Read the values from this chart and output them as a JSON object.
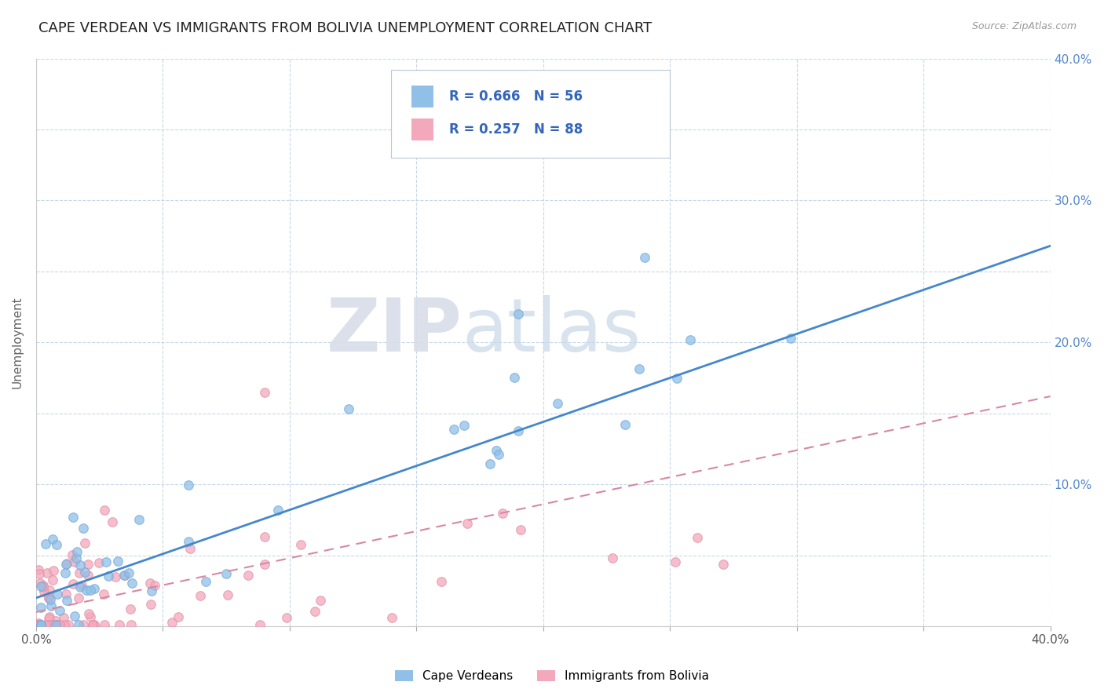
{
  "title": "CAPE VERDEAN VS IMMIGRANTS FROM BOLIVIA UNEMPLOYMENT CORRELATION CHART",
  "source": "Source: ZipAtlas.com",
  "ylabel": "Unemployment",
  "xlim": [
    0.0,
    0.4
  ],
  "ylim": [
    0.0,
    0.4
  ],
  "series1_name": "Cape Verdeans",
  "series1_color": "#90c0e8",
  "series1_edge_color": "#70a8d8",
  "series1_R": 0.666,
  "series1_N": 56,
  "series1_line_color": "#4488cc",
  "series2_name": "Immigrants from Bolivia",
  "series2_color": "#f4a8bc",
  "series2_edge_color": "#e090a4",
  "series2_R": 0.257,
  "series2_N": 88,
  "series2_line_color": "#d888a0",
  "watermark_zip": "ZIP",
  "watermark_atlas": "atlas",
  "background_color": "#ffffff",
  "title_color": "#222222",
  "title_fontsize": 13,
  "legend_text_color": "#3366bb",
  "right_ytick_labels": [
    "",
    "",
    "10.0%",
    "",
    "20.0%",
    "",
    "30.0%",
    "",
    "40.0%"
  ],
  "grid_color": "#c8d8e8",
  "right_axis_color": "#5588cc"
}
